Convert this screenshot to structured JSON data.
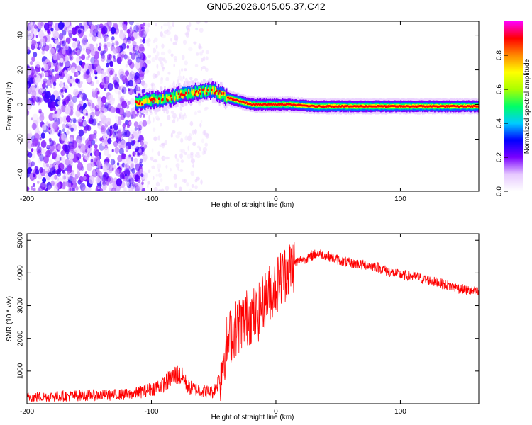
{
  "title": "GN05.2026.045.05.37.C42",
  "chart_data": [
    {
      "type": "heatmap",
      "panel": "top",
      "title": "GN05.2026.045.05.37.C42",
      "xlabel": "Height of straight line (km)",
      "ylabel": "Frequency (Hz)",
      "xlim": [
        -200,
        163
      ],
      "ylim": [
        -50,
        48
      ],
      "x_ticks": [
        -200,
        -100,
        0,
        100
      ],
      "y_ticks": [
        -40,
        -20,
        0,
        20,
        40
      ],
      "colorbar": {
        "label": "Normalized spectral amplitude",
        "range": [
          0.0,
          1.0
        ],
        "ticks": [
          0.0,
          0.2,
          0.4,
          0.6,
          0.8
        ],
        "colormap": [
          "#ffffff",
          "#e6c8ff",
          "#7a00ff",
          "#0000ff",
          "#00ccff",
          "#00ff66",
          "#aaff00",
          "#ffff00",
          "#ff8800",
          "#ff0000",
          "#ff00ff"
        ]
      },
      "ridge": {
        "description": "dominant frequency trace",
        "x": [
          -113,
          -105,
          -95,
          -85,
          -75,
          -65,
          -55,
          -50,
          -45,
          -40,
          -35,
          -30,
          -25,
          -20,
          -10,
          0,
          10,
          30,
          50,
          75,
          90,
          100,
          130,
          163
        ],
        "frequency_hz": [
          1,
          2,
          3,
          4,
          6,
          7,
          8,
          8,
          6,
          4,
          3,
          2,
          1,
          0,
          0,
          0,
          0,
          -1,
          -1,
          -1,
          -1,
          -1,
          -1,
          -1
        ]
      }
    },
    {
      "type": "line",
      "panel": "bottom",
      "xlabel": "Height of straight line (km)",
      "ylabel": "SNR (10 * v/v)",
      "xlim": [
        -200,
        163
      ],
      "ylim": [
        0,
        5200
      ],
      "x_ticks": [
        -200,
        -100,
        0,
        100
      ],
      "y_ticks": [
        1000,
        2000,
        3000,
        4000,
        5000
      ],
      "series": [
        {
          "name": "SNR",
          "color": "#ff0000",
          "x": [
            -200,
            -180,
            -160,
            -140,
            -120,
            -110,
            -100,
            -90,
            -80,
            -75,
            -70,
            -60,
            -50,
            -45,
            -40,
            -35,
            -30,
            -25,
            -20,
            -15,
            -10,
            -5,
            0,
            5,
            10,
            15,
            20,
            25,
            30,
            35,
            40,
            50,
            60,
            70,
            80,
            90,
            100,
            110,
            120,
            130,
            140,
            150,
            163
          ],
          "values": [
            200,
            220,
            250,
            260,
            280,
            350,
            450,
            600,
            900,
            800,
            500,
            400,
            350,
            800,
            1800,
            2200,
            2400,
            2600,
            2700,
            2700,
            3100,
            3400,
            3600,
            3900,
            4100,
            4300,
            4400,
            4450,
            4550,
            4600,
            4550,
            4400,
            4300,
            4250,
            4200,
            4050,
            3950,
            3900,
            3800,
            3700,
            3600,
            3500,
            3400
          ]
        }
      ]
    }
  ]
}
